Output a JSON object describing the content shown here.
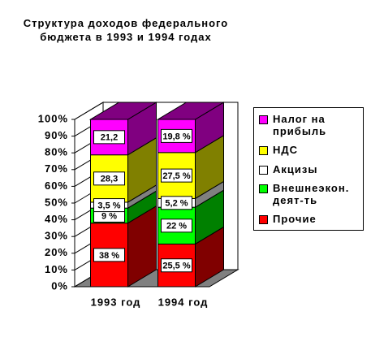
{
  "chart_data": {
    "type": "bar",
    "stacked": true,
    "title": "Структура доходов федерального бюджета в 1993 и 1994 годах",
    "categories": [
      "1993 год",
      "1994 год"
    ],
    "ylim": [
      0,
      100
    ],
    "yticks": [
      {
        "value": 0,
        "label": "0%"
      },
      {
        "value": 10,
        "label": "10%"
      },
      {
        "value": 20,
        "label": "20%"
      },
      {
        "value": 30,
        "label": "30%"
      },
      {
        "value": 40,
        "label": "40%"
      },
      {
        "value": 50,
        "label": "50%"
      },
      {
        "value": 60,
        "label": "60%"
      },
      {
        "value": 70,
        "label": "70%"
      },
      {
        "value": 80,
        "label": "80%"
      },
      {
        "value": 90,
        "label": "90%"
      },
      {
        "value": 100,
        "label": "100%"
      }
    ],
    "series": [
      {
        "name": "Прочие",
        "color": "#ff0000",
        "values": [
          38,
          25.5
        ],
        "value_labels": [
          "38 %",
          "25,5 %"
        ]
      },
      {
        "name": "Внешнеэкон. деят-ть",
        "color": "#00ff00",
        "values": [
          9,
          22
        ],
        "value_labels": [
          "9 %",
          "22 %"
        ]
      },
      {
        "name": "Акцизы",
        "color": "#ffffff",
        "values": [
          3.5,
          5.2
        ],
        "value_labels": [
          "3,5 %",
          "5,2 %"
        ]
      },
      {
        "name": "НДС",
        "color": "#ffff00",
        "values": [
          28.3,
          27.5
        ],
        "value_labels": [
          "28,3",
          "27,5 %"
        ]
      },
      {
        "name": "Налог на прибыль",
        "color": "#ff00ff",
        "values": [
          21.2,
          19.8
        ],
        "value_labels": [
          "21,2",
          "19,8 %"
        ]
      }
    ]
  }
}
